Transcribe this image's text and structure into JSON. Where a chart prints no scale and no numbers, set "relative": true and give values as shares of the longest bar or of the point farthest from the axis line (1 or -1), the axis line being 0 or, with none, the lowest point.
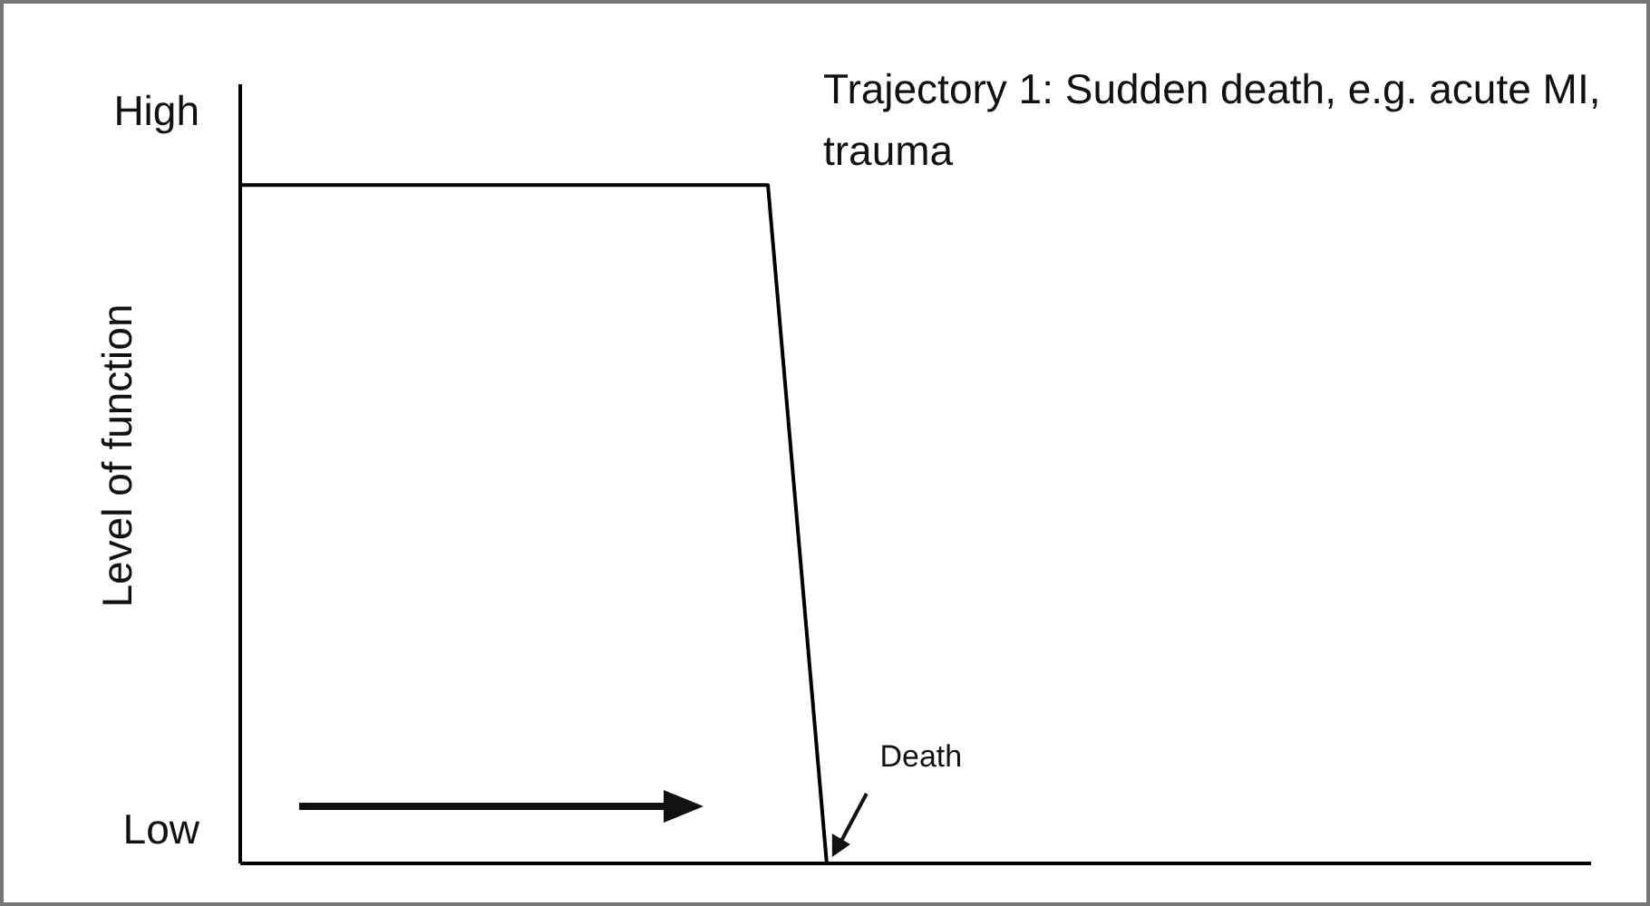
{
  "chart_data": {
    "type": "line",
    "title": "Trajectory 1: Sudden death, e.g. acute MI, trauma",
    "ylabel": "Level of function",
    "categories": [
      null,
      null,
      null,
      null,
      null,
      null,
      null,
      null,
      null,
      null,
      null,
      null,
      null,
      null,
      null,
      null,
      null,
      null,
      null,
      null,
      null,
      null,
      null,
      null
    ],
    "series": [
      {
        "color": "#000000",
        "values": [
          1,
          1,
          1,
          1,
          1,
          1,
          1,
          1,
          1,
          1,
          0,
          null,
          null,
          null,
          null,
          null,
          null,
          null,
          null,
          null,
          null,
          null,
          null,
          null
        ]
      }
    ],
    "relative": true,
    "marker": "none",
    "line_style": "solid",
    "annotations": [
      "High",
      "Low",
      "Death"
    ]
  }
}
